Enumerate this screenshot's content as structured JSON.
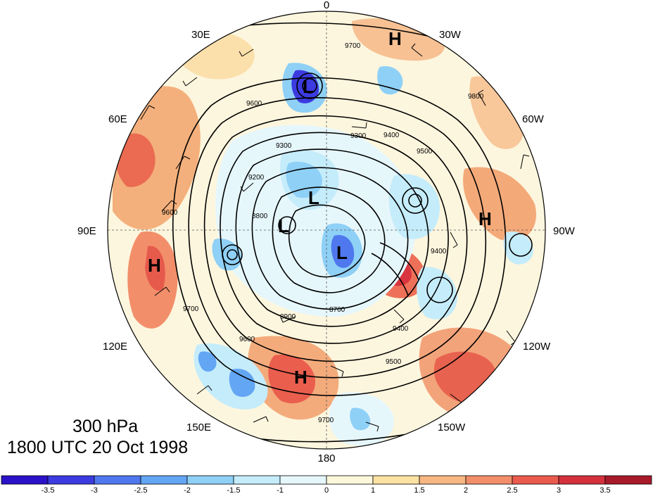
{
  "map": {
    "projection": "north-polar-stereographic",
    "variable": "300 hPa geopotential height contours with anomaly shading and wind barbs",
    "longitude_labels": [
      "0",
      "30W",
      "60W",
      "90W",
      "120W",
      "150W",
      "180",
      "150E",
      "120E",
      "90E",
      "60E",
      "30E"
    ],
    "pressure_centers": [
      {
        "label": "H",
        "type": "high"
      },
      {
        "label": "H",
        "type": "high"
      },
      {
        "label": "H",
        "type": "high"
      },
      {
        "label": "H",
        "type": "high"
      },
      {
        "label": "L",
        "type": "low"
      },
      {
        "label": "L",
        "type": "low"
      },
      {
        "label": "L",
        "type": "low"
      },
      {
        "label": "L",
        "type": "low"
      }
    ],
    "contour_labels": [
      "9700",
      "9600",
      "9500",
      "9400",
      "9300",
      "9200",
      "8900",
      "8700",
      "9600",
      "9700",
      "9500",
      "9400",
      "8800",
      "9600",
      "9700",
      "9300",
      "9800",
      "9400"
    ]
  },
  "caption": {
    "level": "300 hPa",
    "time": "1800 UTC 20 Oct 1998"
  },
  "colorbar": {
    "labels": [
      "-3.5",
      "-3",
      "-2.5",
      "-2",
      "-1.5",
      "-1",
      "0",
      "1",
      "1.5",
      "2",
      "2.5",
      "3",
      "3.5"
    ],
    "colors": [
      "#2b12c8",
      "#3c3be0",
      "#4f78ee",
      "#63a6f4",
      "#8fd0f6",
      "#c5ecfa",
      "#e6f7fc",
      "#fdf8dc",
      "#fbe2a2",
      "#f7b682",
      "#f28f6a",
      "#ea5b4e",
      "#d4313d",
      "#a8192a"
    ],
    "colors_note": "shading"
  }
}
